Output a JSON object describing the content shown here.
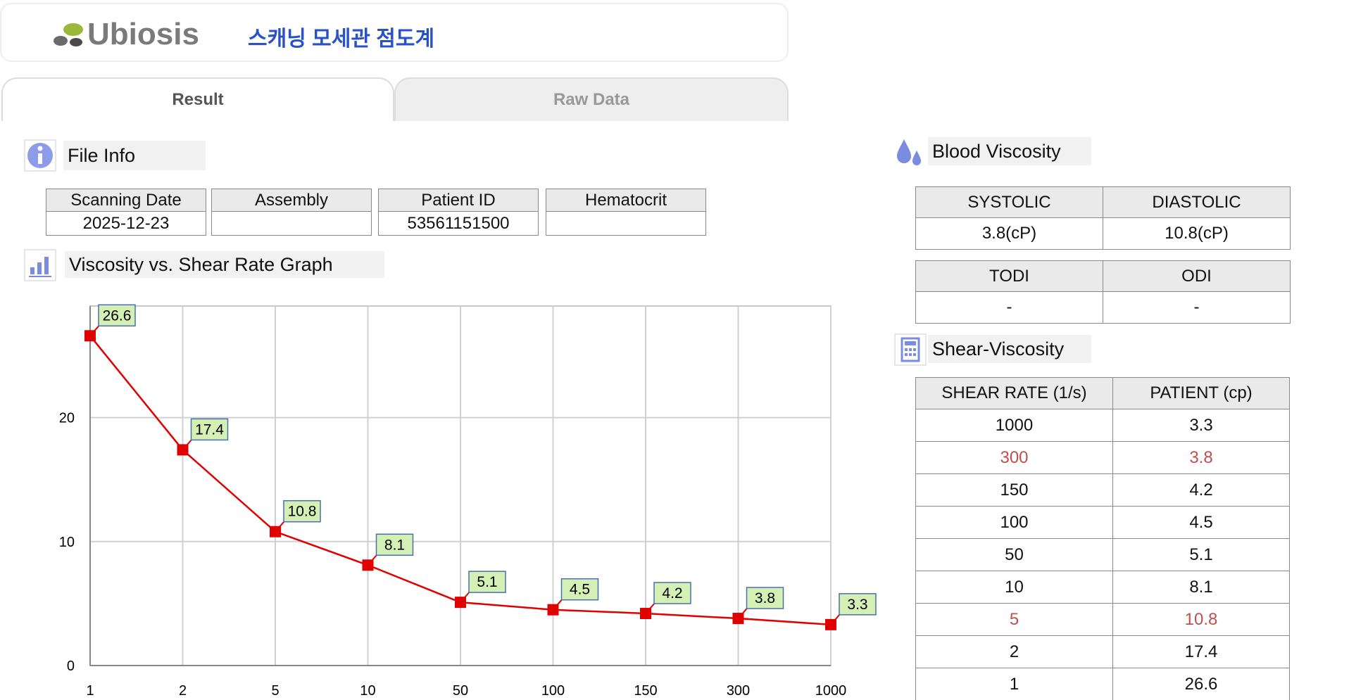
{
  "header": {
    "logo": "Ubiosis",
    "title": "스캐닝 모세관 점도계"
  },
  "tabs": [
    "Result",
    "Raw Data"
  ],
  "file_info": {
    "title": "File Info",
    "columns": [
      "Scanning Date",
      "Assembly",
      "Patient ID",
      "Hematocrit"
    ],
    "values": [
      "2025-12-23",
      null,
      "53561151500",
      null
    ]
  },
  "chart_data": {
    "type": "line",
    "title": "Viscosity vs. Shear Rate Graph",
    "categories": [
      "1",
      "2",
      "5",
      "10",
      "50",
      "100",
      "150",
      "300",
      "1000"
    ],
    "series": [
      {
        "color": "#e00000",
        "values": [
          26.6,
          17.4,
          10.8,
          8.1,
          5.1,
          4.5,
          4.2,
          3.8,
          3.3
        ]
      }
    ],
    "ylim": [
      0,
      29
    ],
    "yticks": [
      0,
      10,
      20
    ],
    "grid": true
  },
  "blood_viscosity": {
    "title": "Blood Viscosity",
    "tables": [
      {
        "columns": [
          "SYSTOLIC",
          "DIASTOLIC"
        ],
        "values": [
          "3.8(cP)",
          "10.8(cP)"
        ]
      },
      {
        "columns": [
          "TODI",
          "ODI"
        ],
        "values": [
          "-",
          "-"
        ]
      }
    ]
  },
  "shear_viscosity": {
    "title": "Shear-Viscosity",
    "columns": [
      "SHEAR RATE (1/s)",
      "PATIENT (cp)"
    ],
    "rows": [
      [
        1000,
        3.3
      ],
      [
        300,
        3.8
      ],
      [
        150,
        4.2
      ],
      [
        100,
        4.5
      ],
      [
        50,
        5.1
      ],
      [
        10,
        8.1
      ],
      [
        5,
        10.8
      ],
      [
        2,
        17.4
      ],
      [
        1,
        26.6
      ]
    ]
  }
}
